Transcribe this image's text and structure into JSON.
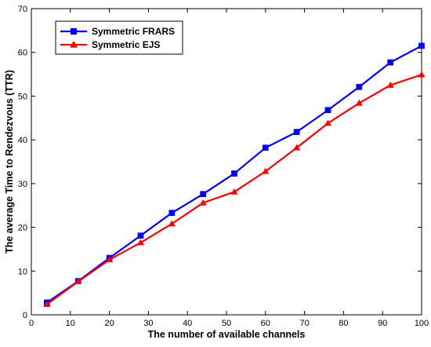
{
  "chart_data": {
    "type": "line",
    "xlabel": "The number of available channels",
    "ylabel": "The average Time to Rendezvous (TTR)",
    "xlim": [
      0,
      100
    ],
    "ylim": [
      0,
      70
    ],
    "xticks": [
      0,
      10,
      20,
      30,
      40,
      50,
      60,
      70,
      80,
      90,
      100
    ],
    "yticks": [
      0,
      10,
      20,
      30,
      40,
      50,
      60,
      70
    ],
    "x": [
      4,
      12,
      20,
      28,
      36,
      44,
      52,
      60,
      68,
      76,
      84,
      92,
      100
    ],
    "grid": false,
    "legend_position": "top-left",
    "series": [
      {
        "name": "Symmetric FRARS",
        "color": "#0000ff",
        "marker": "square",
        "values": [
          2.8,
          7.7,
          13.0,
          18.1,
          23.3,
          27.6,
          32.3,
          38.2,
          41.8,
          46.8,
          52.1,
          57.7,
          61.5
        ]
      },
      {
        "name": "Symmetric EJS",
        "color": "#ff0000",
        "marker": "triangle",
        "values": [
          2.4,
          7.6,
          12.6,
          16.5,
          20.8,
          25.6,
          28.1,
          32.8,
          38.2,
          43.8,
          48.4,
          52.5,
          54.9
        ]
      }
    ]
  }
}
